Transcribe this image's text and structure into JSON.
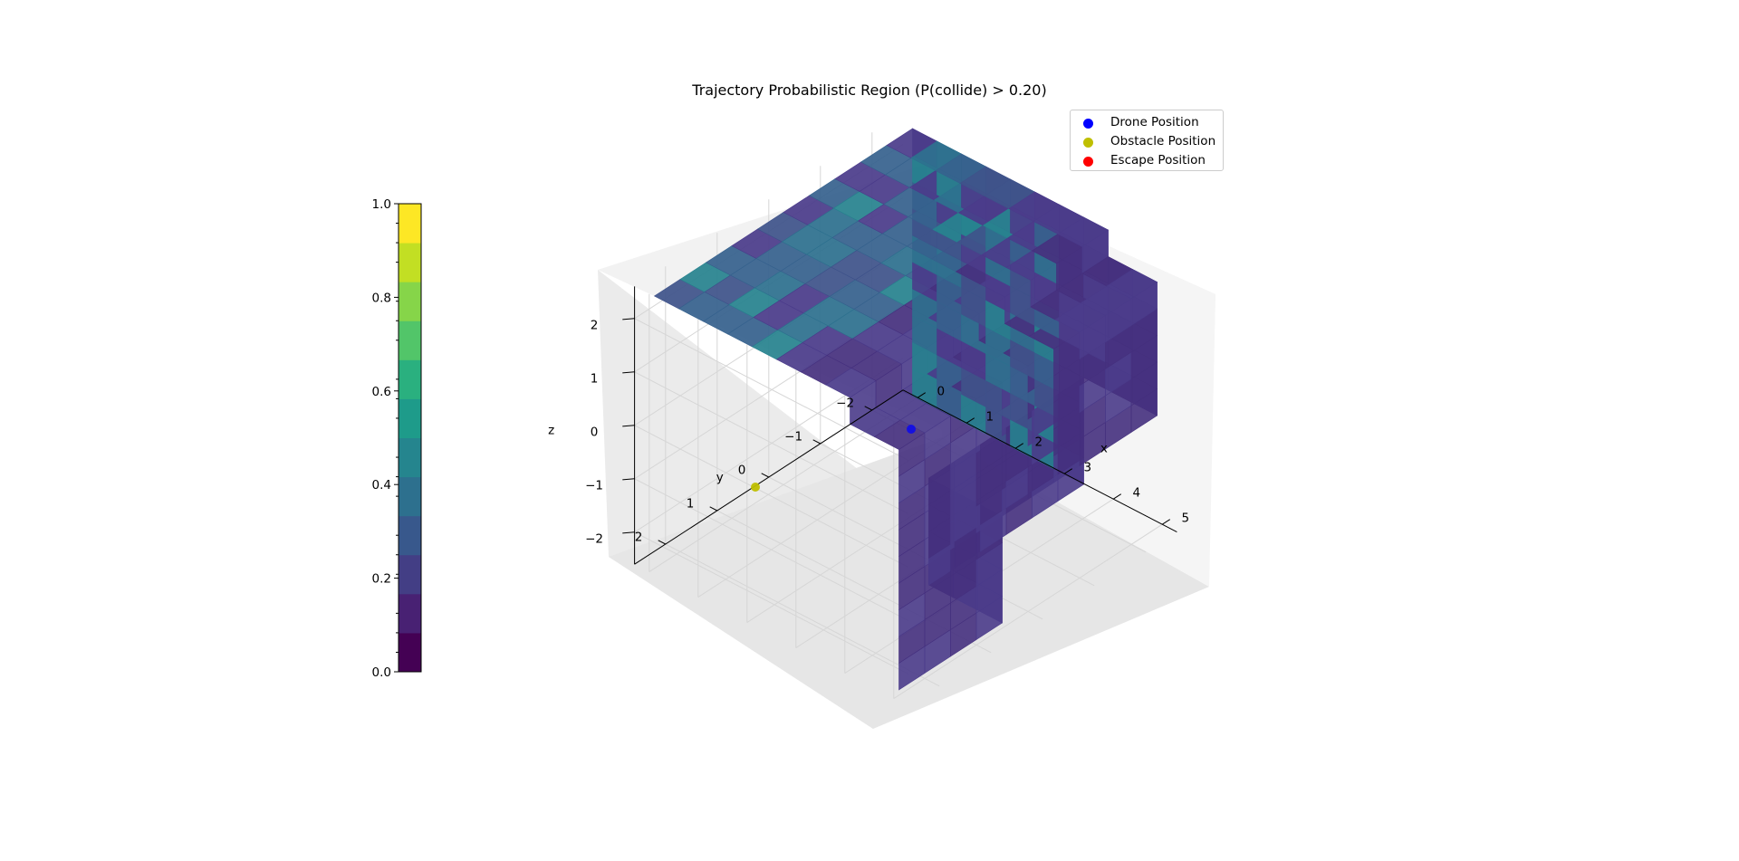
{
  "chart_data": {
    "type": "scatter",
    "subtype": "3d voxel probability region with scatter markers",
    "title": "Trajectory Probabilistic Region (P(collide) > 0.20)",
    "xlabel": "x",
    "ylabel": "y",
    "zlabel": "z",
    "x_ticks": [
      "0",
      "1",
      "2",
      "3",
      "4",
      "5"
    ],
    "y_ticks": [
      "−2",
      "−1",
      "0",
      "1",
      "2"
    ],
    "z_ticks": [
      "−2",
      "−1",
      "0",
      "1",
      "2"
    ],
    "xlim": [
      0,
      5
    ],
    "ylim": [
      -2,
      2
    ],
    "zlim": [
      -2,
      2
    ],
    "grid": true,
    "legend_position": "top-right",
    "colormap": "viridis",
    "colorbar": {
      "ticks": [
        "0.0",
        "0.2",
        "0.4",
        "0.6",
        "0.8",
        "1.0"
      ],
      "range": [
        0,
        1
      ],
      "levels": 12
    },
    "series": [
      {
        "name": "Drone Position",
        "color": "#0000ff"
      },
      {
        "name": "Obstacle Position",
        "color": "#bfbf00"
      },
      {
        "name": "Escape Position",
        "color": "#ff0000"
      }
    ]
  }
}
